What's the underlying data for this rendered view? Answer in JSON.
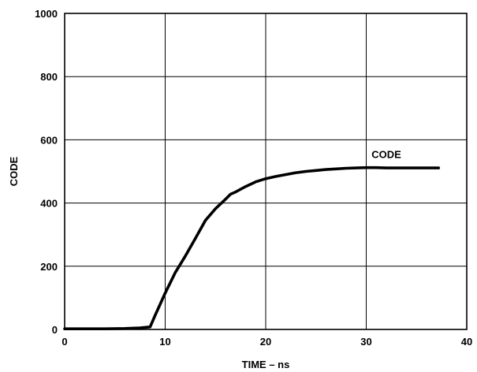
{
  "chart_data": {
    "type": "line",
    "xlabel": "TIME – ns",
    "ylabel": "CODE",
    "xlim": [
      0,
      40
    ],
    "ylim": [
      0,
      1000
    ],
    "x_ticks": [
      "0",
      "10",
      "20",
      "30",
      "40"
    ],
    "y_ticks": [
      "0",
      "200",
      "400",
      "600",
      "800",
      "1000"
    ],
    "grid": true,
    "series": [
      {
        "name": "CODE",
        "color": "#000000",
        "x": [
          0,
          2,
          4,
          6,
          7.5,
          8.5,
          9,
          10,
          11,
          12,
          13,
          14,
          15,
          16,
          16.5,
          17,
          18,
          19,
          20,
          21,
          22,
          23,
          24,
          25,
          26,
          27,
          28,
          29,
          30,
          31,
          32,
          33,
          34,
          35,
          36,
          37.2
        ],
        "y": [
          2,
          2,
          2,
          3,
          5,
          8,
          45,
          115,
          180,
          232,
          288,
          345,
          382,
          412,
          428,
          435,
          452,
          467,
          477,
          484,
          490,
          496,
          500,
          503,
          506,
          508,
          510,
          511,
          512,
          512,
          511,
          511,
          511,
          511,
          511,
          511
        ]
      }
    ],
    "annotations": [
      {
        "text": "CODE",
        "x": 32,
        "y": 555
      }
    ]
  }
}
